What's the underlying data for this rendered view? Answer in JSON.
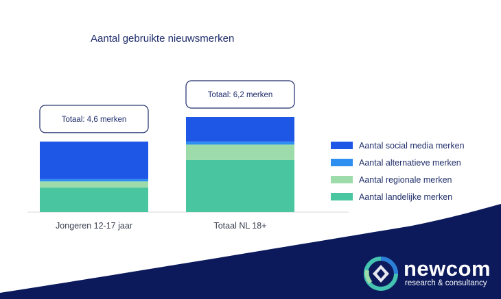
{
  "chart_data": {
    "type": "bar",
    "stacked": true,
    "title": "Aantal gebruikte nieuwsmerken",
    "categories": [
      "Jongeren 12-17 jaar",
      "Totaal NL 18+"
    ],
    "totals_labels": [
      "Totaal: 4,6 merken",
      "Totaal: 6,2 merken"
    ],
    "totals": [
      4.6,
      6.2
    ],
    "ylim": [
      0,
      6.2
    ],
    "series": [
      {
        "name": "Aantal landelijke merken",
        "color": "#49c6a0",
        "values": [
          1.6,
          3.4
        ]
      },
      {
        "name": "Aantal regionale merken",
        "color": "#9ddcaa",
        "values": [
          0.4,
          1.0
        ]
      },
      {
        "name": "Aantal alternatieve merken",
        "color": "#2f8ff0",
        "values": [
          0.15,
          0.2
        ]
      },
      {
        "name": "Aantal social media merken",
        "color": "#1e56e6",
        "values": [
          2.45,
          1.6
        ]
      }
    ],
    "legend_order": [
      3,
      2,
      1,
      0
    ],
    "legend_position": "right"
  },
  "brand": {
    "name": "newcom",
    "tagline": "research & consultancy",
    "colors": {
      "navy": "#0c1a5c",
      "teal": "#45c3b1",
      "blue": "#2b7fd8"
    }
  }
}
